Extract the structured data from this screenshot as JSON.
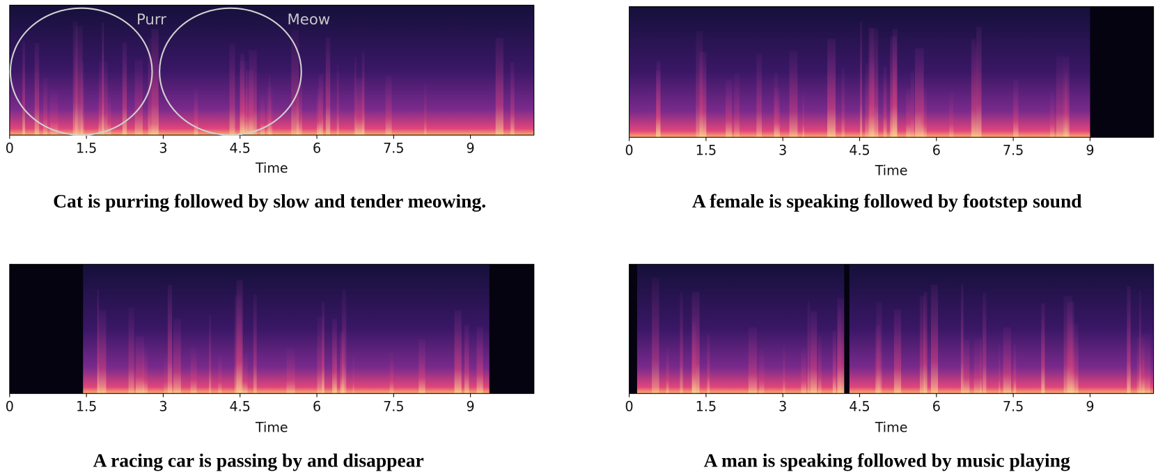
{
  "chart_data": [
    {
      "type": "spectrogram",
      "xlabel": "Time",
      "xlim": [
        0,
        10.24
      ],
      "xticks": [
        0,
        1.5,
        3,
        4.5,
        6,
        7.5,
        9
      ],
      "caption": "Cat is purring followed by slow and tender meowing.",
      "annotations": [
        "Purr",
        "Meow"
      ]
    },
    {
      "type": "spectrogram",
      "xlabel": "Time",
      "xlim": [
        0,
        10.24
      ],
      "xticks": [
        0,
        1.5,
        3,
        4.5,
        6,
        7.5,
        9
      ],
      "caption": "A female is speaking followed by footstep sound"
    },
    {
      "type": "spectrogram",
      "xlabel": "Time",
      "xlim": [
        0,
        10.24
      ],
      "xticks": [
        0,
        1.5,
        3,
        4.5,
        6,
        7.5,
        9
      ],
      "caption": "A racing car is passing by and disappear"
    },
    {
      "type": "spectrogram",
      "xlabel": "Time",
      "xlim": [
        0,
        10.24
      ],
      "xticks": [
        0,
        1.5,
        3,
        4.5,
        6,
        7.5,
        9
      ],
      "caption": "A man is speaking followed by music playing"
    }
  ]
}
